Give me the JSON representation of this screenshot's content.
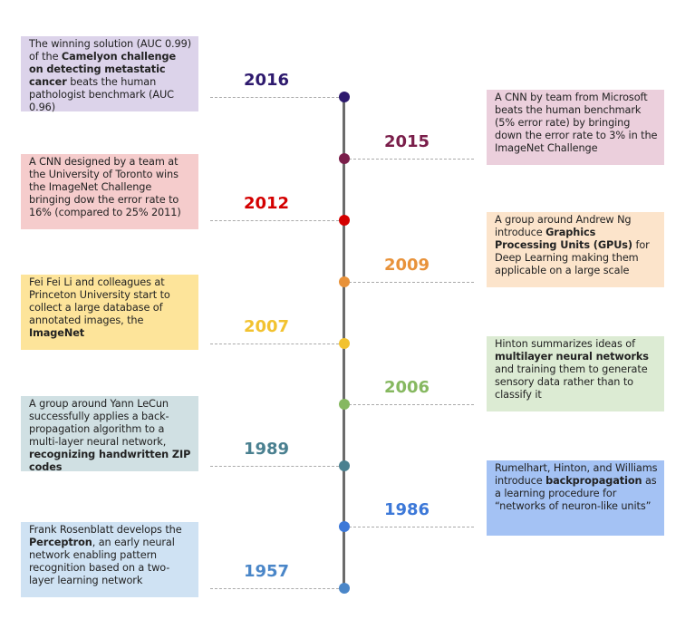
{
  "events": [
    {
      "year": "2016",
      "color": "#2e1a6e",
      "bg": "#dcd3ea",
      "side": "left",
      "segments": [
        {
          "text": "The winning solution (AUC 0.99) of the "
        },
        {
          "text": "Camelyon challenge on detecting metastatic cancer",
          "bold": true
        },
        {
          "text": " beats the human pathologist benchmark (AUC 0.96)"
        }
      ]
    },
    {
      "year": "2015",
      "color": "#7a1e4a",
      "bg": "#ebcfdc",
      "side": "right",
      "segments": [
        {
          "text": "A CNN by team from Microsoft beats the human benchmark (5% error rate) by bringing down the error rate to 3% in the ImageNet Challenge"
        }
      ]
    },
    {
      "year": "2012",
      "color": "#d40000",
      "bg": "#f5cccc",
      "side": "left",
      "segments": [
        {
          "text": "A CNN designed by a team  at the University of Toronto wins the ImageNet Challenge bringing dow the error rate to 16% (compared to 25% 2011)"
        }
      ]
    },
    {
      "year": "2009",
      "color": "#e8923a",
      "bg": "#fce4cb",
      "side": "right",
      "segments": [
        {
          "text": "A group around Andrew Ng introduce "
        },
        {
          "text": "Graphics Processing Units (GPUs)",
          "bold": true
        },
        {
          "text": " for Deep Learning making them applicable on a large scale"
        }
      ]
    },
    {
      "year": "2007",
      "color": "#f2c230",
      "bg": "#fde49a",
      "side": "left",
      "segments": [
        {
          "text": "Fei Fei Li and colleagues at Princeton University start to collect a large database of annotated images, the "
        },
        {
          "text": "ImageNet",
          "bold": true
        }
      ]
    },
    {
      "year": "2006",
      "color": "#86b860",
      "bg": "#dcebd3",
      "side": "right",
      "segments": [
        {
          "text": "Hinton summarizes ideas of "
        },
        {
          "text": "multilayer neural networks",
          "bold": true
        },
        {
          "text": " and training them to generate sensory data rather than to classify it"
        }
      ]
    },
    {
      "year": "1989",
      "color": "#4a8090",
      "bg": "#d0e0e3",
      "side": "left",
      "segments": [
        {
          "text": "A group around Yann LeCun successfully applies a back-propagation algorithm to a multi-layer neural network, "
        },
        {
          "text": "recognizing handwritten ZIP codes",
          "bold": true
        }
      ]
    },
    {
      "year": "1986",
      "color": "#3c78d8",
      "bg": "#a4c2f4",
      "side": "right",
      "segments": [
        {
          "text": "Rumelhart, Hinton, and Williams introduce "
        },
        {
          "text": "backpropagation",
          "bold": true
        },
        {
          "text": " as a learning procedure for “networks of neuron-like units”"
        }
      ]
    },
    {
      "year": "1957",
      "color": "#4a86c8",
      "bg": "#cfe2f3",
      "side": "left",
      "segments": [
        {
          "text": "Frank Rosenblatt develops the "
        },
        {
          "text": "Perceptron",
          "bold": true
        },
        {
          "text": ", an early neural network enabling pattern recognition based on a two-layer learning network"
        }
      ]
    }
  ]
}
